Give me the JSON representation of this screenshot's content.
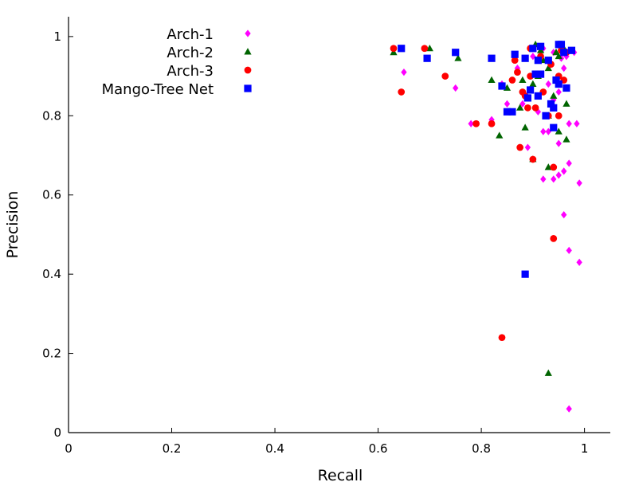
{
  "chart_data": {
    "type": "scatter",
    "xlabel": "Recall",
    "ylabel": "Precision",
    "xlim": [
      0,
      1.05
    ],
    "ylim": [
      0,
      1.05
    ],
    "xticks": [
      0,
      0.2,
      0.4,
      0.6,
      0.8,
      1
    ],
    "yticks": [
      0,
      0.2,
      0.4,
      0.6,
      0.8,
      1
    ],
    "xtick_labels": [
      "0",
      "0.2",
      "0.4",
      "0.6",
      "0.8",
      "1"
    ],
    "ytick_labels": [
      "0",
      "0.2",
      "0.4",
      "0.6",
      "0.8",
      "1"
    ],
    "grid": false,
    "legend_position": "top-left",
    "series": [
      {
        "name": "Arch-1",
        "marker": "diamond",
        "color": "#ff00ff",
        "points": [
          [
            0.65,
            0.91
          ],
          [
            0.75,
            0.87
          ],
          [
            0.78,
            0.78
          ],
          [
            0.82,
            0.79
          ],
          [
            0.84,
            0.88
          ],
          [
            0.85,
            0.83
          ],
          [
            0.87,
            0.92
          ],
          [
            0.88,
            0.83
          ],
          [
            0.89,
            0.72
          ],
          [
            0.9,
            0.95
          ],
          [
            0.91,
            0.94
          ],
          [
            0.91,
            0.81
          ],
          [
            0.92,
            0.97
          ],
          [
            0.92,
            0.76
          ],
          [
            0.92,
            0.64
          ],
          [
            0.93,
            0.76
          ],
          [
            0.93,
            0.88
          ],
          [
            0.94,
            0.96
          ],
          [
            0.94,
            0.84
          ],
          [
            0.94,
            0.64
          ],
          [
            0.95,
            0.73
          ],
          [
            0.95,
            0.9
          ],
          [
            0.95,
            0.86
          ],
          [
            0.95,
            0.65
          ],
          [
            0.96,
            0.55
          ],
          [
            0.96,
            0.92
          ],
          [
            0.96,
            0.66
          ],
          [
            0.97,
            0.68
          ],
          [
            0.97,
            0.78
          ],
          [
            0.97,
            0.46
          ],
          [
            0.98,
            0.96
          ],
          [
            0.985,
            0.78
          ],
          [
            0.99,
            0.43
          ],
          [
            0.99,
            0.63
          ],
          [
            0.97,
            0.06
          ],
          [
            0.955,
            0.945
          ],
          [
            0.965,
            0.95
          ]
        ]
      },
      {
        "name": "Arch-2",
        "marker": "triangle",
        "color": "#006400",
        "points": [
          [
            0.63,
            0.96
          ],
          [
            0.7,
            0.97
          ],
          [
            0.755,
            0.945
          ],
          [
            0.82,
            0.89
          ],
          [
            0.835,
            0.75
          ],
          [
            0.85,
            0.87
          ],
          [
            0.875,
            0.82
          ],
          [
            0.88,
            0.89
          ],
          [
            0.885,
            0.77
          ],
          [
            0.9,
            0.69
          ],
          [
            0.9,
            0.88
          ],
          [
            0.91,
            0.9
          ],
          [
            0.915,
            0.965
          ],
          [
            0.92,
            0.94
          ],
          [
            0.93,
            0.92
          ],
          [
            0.93,
            0.8
          ],
          [
            0.93,
            0.67
          ],
          [
            0.94,
            0.85
          ],
          [
            0.945,
            0.96
          ],
          [
            0.95,
            0.95
          ],
          [
            0.95,
            0.76
          ],
          [
            0.96,
            0.97
          ],
          [
            0.965,
            0.74
          ],
          [
            0.965,
            0.83
          ],
          [
            0.93,
            0.15
          ],
          [
            0.905,
            0.98
          ]
        ]
      },
      {
        "name": "Arch-3",
        "marker": "circle",
        "color": "#ff0000",
        "points": [
          [
            0.63,
            0.97
          ],
          [
            0.645,
            0.86
          ],
          [
            0.69,
            0.97
          ],
          [
            0.73,
            0.9
          ],
          [
            0.79,
            0.78
          ],
          [
            0.82,
            0.78
          ],
          [
            0.84,
            0.24
          ],
          [
            0.86,
            0.89
          ],
          [
            0.865,
            0.94
          ],
          [
            0.87,
            0.91
          ],
          [
            0.875,
            0.72
          ],
          [
            0.88,
            0.86
          ],
          [
            0.885,
            0.85
          ],
          [
            0.89,
            0.82
          ],
          [
            0.895,
            0.97
          ],
          [
            0.895,
            0.9
          ],
          [
            0.9,
            0.69
          ],
          [
            0.905,
            0.82
          ],
          [
            0.915,
            0.95
          ],
          [
            0.92,
            0.86
          ],
          [
            0.93,
            0.8
          ],
          [
            0.935,
            0.93
          ],
          [
            0.94,
            0.49
          ],
          [
            0.94,
            0.67
          ],
          [
            0.95,
            0.9
          ],
          [
            0.95,
            0.8
          ],
          [
            0.96,
            0.89
          ],
          [
            0.965,
            0.96
          ],
          [
            0.955,
            0.965
          ]
        ]
      },
      {
        "name": "Mango-Tree Net",
        "marker": "square",
        "color": "#0000ff",
        "points": [
          [
            0.645,
            0.97
          ],
          [
            0.695,
            0.945
          ],
          [
            0.75,
            0.96
          ],
          [
            0.82,
            0.945
          ],
          [
            0.84,
            0.875
          ],
          [
            0.85,
            0.81
          ],
          [
            0.86,
            0.81
          ],
          [
            0.865,
            0.955
          ],
          [
            0.885,
            0.4
          ],
          [
            0.885,
            0.945
          ],
          [
            0.89,
            0.845
          ],
          [
            0.895,
            0.865
          ],
          [
            0.9,
            0.97
          ],
          [
            0.905,
            0.905
          ],
          [
            0.91,
            0.94
          ],
          [
            0.91,
            0.85
          ],
          [
            0.915,
            0.975
          ],
          [
            0.915,
            0.905
          ],
          [
            0.925,
            0.8
          ],
          [
            0.93,
            0.94
          ],
          [
            0.935,
            0.83
          ],
          [
            0.94,
            0.77
          ],
          [
            0.94,
            0.82
          ],
          [
            0.945,
            0.89
          ],
          [
            0.95,
            0.88
          ],
          [
            0.95,
            0.98
          ],
          [
            0.955,
            0.98
          ],
          [
            0.96,
            0.96
          ],
          [
            0.965,
            0.87
          ],
          [
            0.975,
            0.965
          ]
        ]
      }
    ]
  }
}
